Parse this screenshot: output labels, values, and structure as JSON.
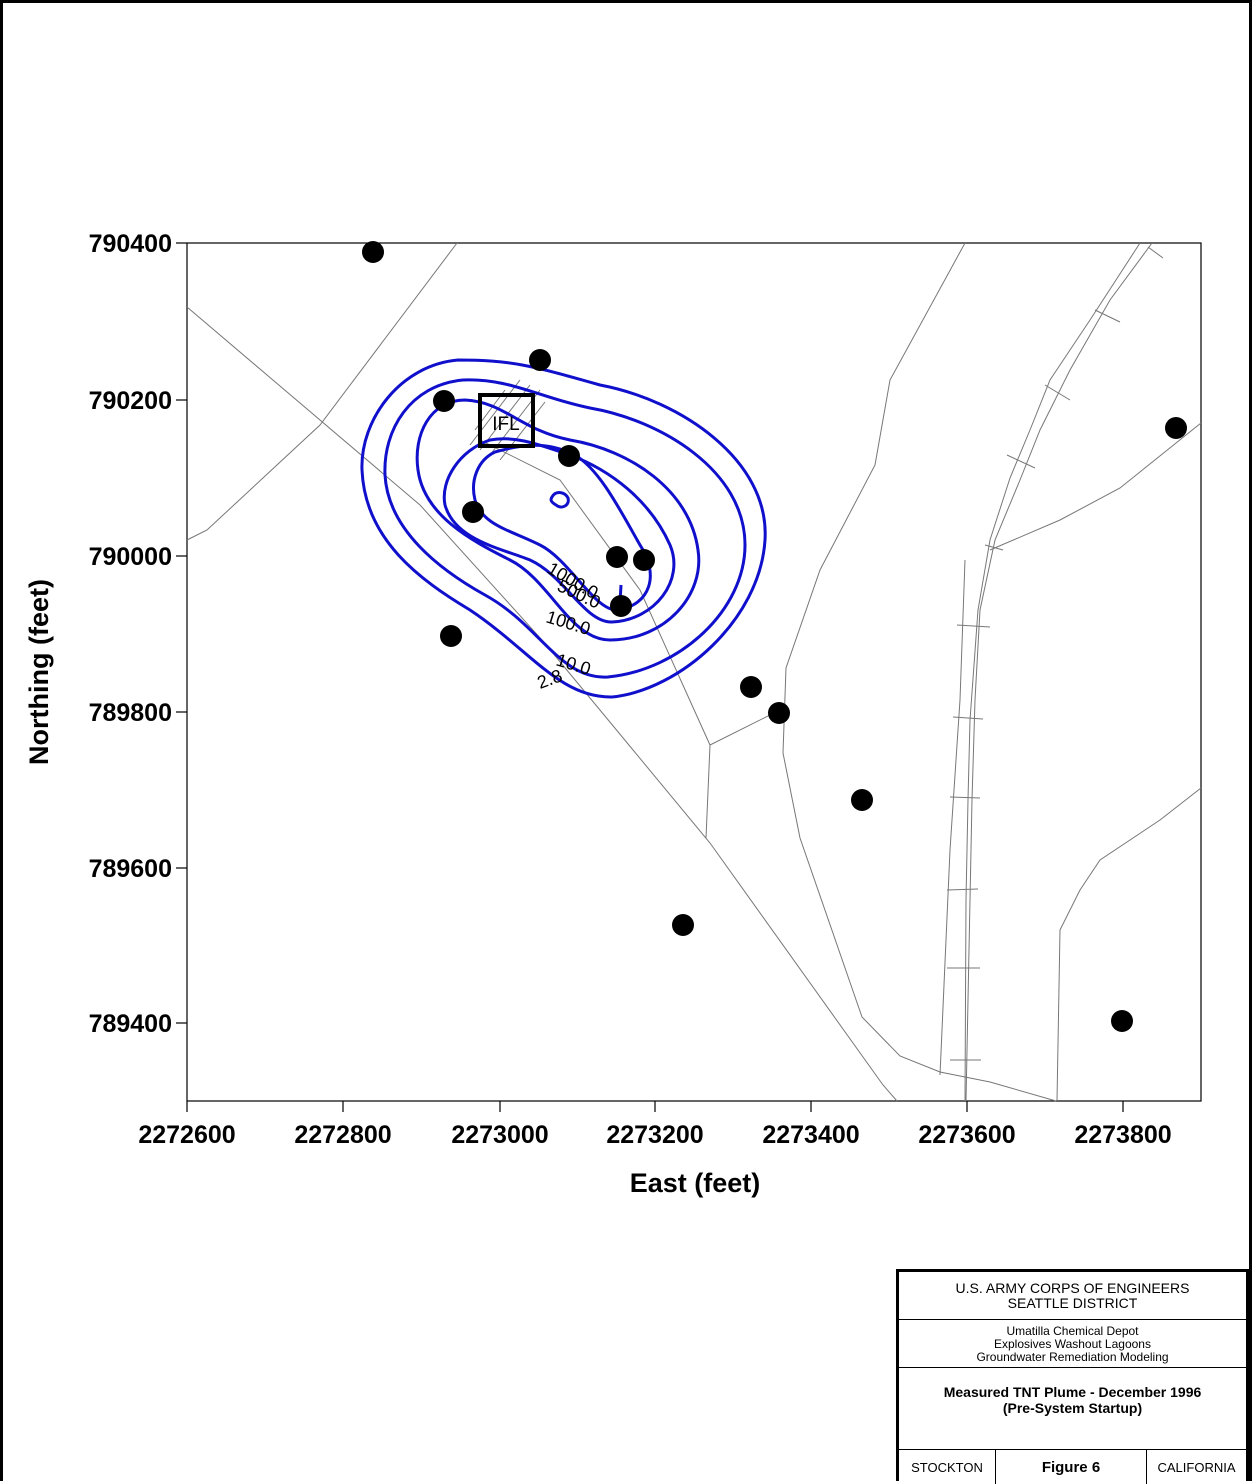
{
  "map": {
    "x_axis_label": "East (feet)",
    "y_axis_label": "Northing (feet)",
    "x_ticks": [
      "2272600",
      "2272800",
      "2273000",
      "2273200",
      "2273400",
      "2273600",
      "2273800"
    ],
    "y_ticks": [
      "790400",
      "790200",
      "790000",
      "789800",
      "789600",
      "789400"
    ],
    "source_label": "IFL",
    "contour_color": "#1010cc",
    "contour_labels": [
      "1000.0",
      "500.0",
      "100.0",
      "10.0",
      "2.8"
    ],
    "well_count_visible": 16
  },
  "title_block": {
    "agency_line1": "U.S. ARMY CORPS OF ENGINEERS",
    "agency_line2": "SEATTLE DISTRICT",
    "project_line1": "Umatilla Chemical Depot",
    "project_line2": "Explosives Washout Lagoons",
    "project_line3": "Groundwater Remediation Modeling",
    "figure_title_line1": "Measured TNT Plume - December 1996",
    "figure_title_line2": "(Pre-System Startup)",
    "footer_left": "STOCKTON",
    "footer_center": "Figure 6",
    "footer_right": "CALIFORNIA"
  }
}
